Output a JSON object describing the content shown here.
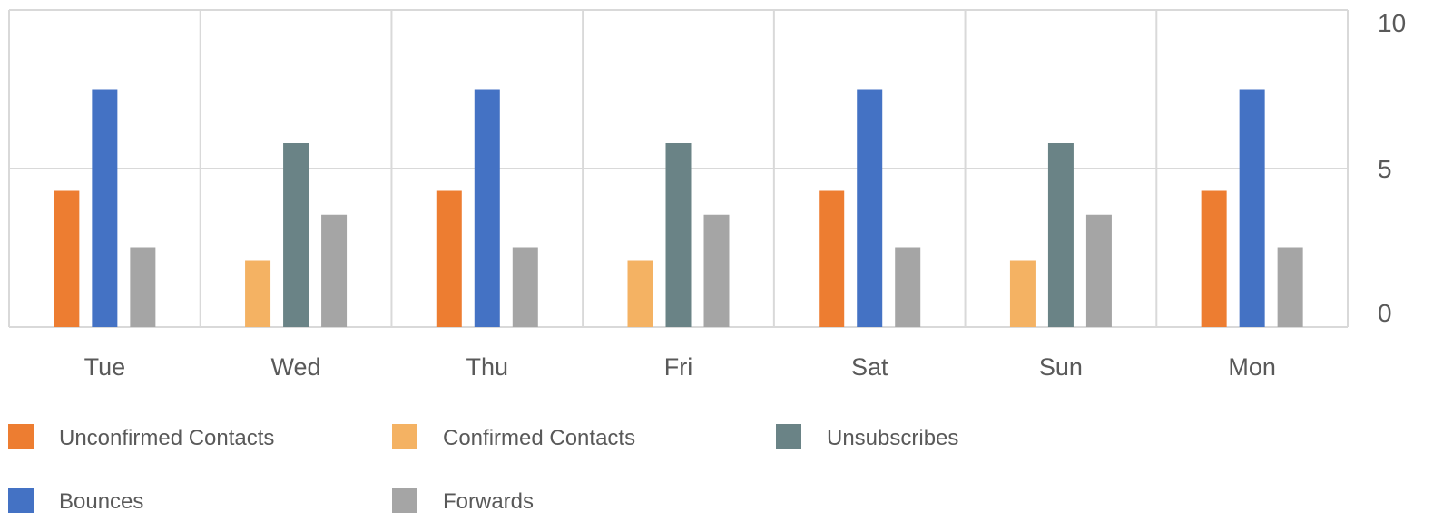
{
  "chart_data": {
    "type": "bar",
    "title": "",
    "xlabel": "",
    "ylabel": "",
    "ylim": [
      0,
      10
    ],
    "yticks": [
      "0",
      "5",
      "10"
    ],
    "y_axis_position": "right",
    "grid": true,
    "legend_position": "bottom",
    "categories": [
      "Tue",
      "Wed",
      "Thu",
      "Fri",
      "Sat",
      "Sun",
      "Mon"
    ],
    "series": [
      {
        "name": "Unconfirmed Contacts",
        "color": "#ED7D31",
        "values": [
          4.3,
          null,
          4.3,
          null,
          4.3,
          null,
          4.3
        ]
      },
      {
        "name": "Confirmed Contacts",
        "color": "#F4B263",
        "values": [
          null,
          2.1,
          null,
          2.1,
          null,
          2.1,
          null
        ]
      },
      {
        "name": "Unsubscribes",
        "color": "#6A8386",
        "values": [
          null,
          5.8,
          null,
          5.8,
          null,
          5.8,
          null
        ]
      },
      {
        "name": "Bounces",
        "color": "#4472C4",
        "values": [
          7.5,
          null,
          7.5,
          null,
          7.5,
          null,
          7.5
        ]
      },
      {
        "name": "Forwards",
        "color": "#A5A5A5",
        "values": [
          2.5,
          3.55,
          2.5,
          3.55,
          2.5,
          3.55,
          2.5
        ]
      }
    ],
    "legend_rows": [
      [
        "Unconfirmed Contacts",
        "Confirmed Contacts",
        "Unsubscribes"
      ],
      [
        "Bounces",
        "Forwards"
      ]
    ]
  }
}
